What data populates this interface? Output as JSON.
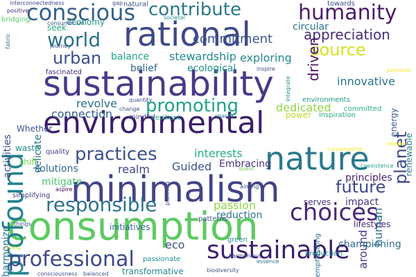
{
  "words": [
    {
      "text": "sustainability",
      "color": "#463b88"
    },
    {
      "text": "consumption",
      "color": "#5ec962"
    },
    {
      "text": "environmental",
      "color": "#3b1e6b"
    },
    {
      "text": "rational",
      "color": "#3f4889"
    },
    {
      "text": "minimalism",
      "color": "#414487"
    },
    {
      "text": "nature",
      "color": "#2a788e"
    },
    {
      "text": "profound",
      "color": "#25838e"
    },
    {
      "text": "sustainable",
      "color": "#3b1f6b"
    },
    {
      "text": "conscious",
      "color": "#35608d"
    },
    {
      "text": "humanity",
      "color": "#4d1b6b"
    },
    {
      "text": "choices",
      "color": "#482677"
    },
    {
      "text": "responsible",
      "color": "#2c728e"
    },
    {
      "text": "professional",
      "color": "#3e4989"
    },
    {
      "text": "promoting",
      "color": "#20a386"
    },
    {
      "text": "contribute",
      "color": "#2a778e"
    },
    {
      "text": "world",
      "color": "#2d708e"
    },
    {
      "text": "source",
      "color": "#d2e21b"
    },
    {
      "text": "planet",
      "color": "#3e4989"
    },
    {
      "text": "practices",
      "color": "#3b528b"
    },
    {
      "text": "future",
      "color": "#404588"
    },
    {
      "text": "appreciation",
      "color": "#472d7b"
    },
    {
      "text": "urban",
      "color": "#3d4e8a"
    },
    {
      "text": "commitment",
      "color": "#3a538b"
    },
    {
      "text": "exploring",
      "color": "#24878e"
    },
    {
      "text": "stewardship",
      "color": "#23888e"
    },
    {
      "text": "balance",
      "color": "#1fa187"
    },
    {
      "text": "innovative",
      "color": "#2c728e"
    },
    {
      "text": "passion",
      "color": "#90d743"
    },
    {
      "text": "dedicated",
      "color": "#8fd744"
    },
    {
      "text": "driven",
      "color": "#471063"
    },
    {
      "text": "revolve",
      "color": "#2f6c8e"
    },
    {
      "text": "connection",
      "color": "#33628d"
    },
    {
      "text": "solutions",
      "color": "#31688e"
    },
    {
      "text": "realm",
      "color": "#3f4788"
    },
    {
      "text": "Guided",
      "color": "#3b528b"
    },
    {
      "text": "interests",
      "color": "#27ad81"
    },
    {
      "text": "around",
      "color": "#443983"
    },
    {
      "text": "human",
      "color": "#2e6d8e"
    },
    {
      "text": "impact",
      "color": "#46337f"
    },
    {
      "text": "mitigate",
      "color": "#4ac16d"
    },
    {
      "text": "Embracing",
      "color": "#463480"
    },
    {
      "text": "principles",
      "color": "#481f70"
    },
    {
      "text": "championing",
      "color": "#2e6e8e"
    },
    {
      "text": "reduction",
      "color": "#2d718e"
    },
    {
      "text": "eco",
      "color": "#3d4e8a"
    },
    {
      "text": "delicate",
      "color": "#2c728e"
    },
    {
      "text": "activities",
      "color": "#3d4e8a"
    },
    {
      "text": "harmonize",
      "color": "#2c728e"
    },
    {
      "text": "belief",
      "color": "#31688e"
    },
    {
      "text": "ecological",
      "color": "#21918c"
    },
    {
      "text": "circular",
      "color": "#2c728e"
    },
    {
      "text": "economy",
      "color": "#1f9a8a"
    },
    {
      "text": "seek",
      "color": "#22a884"
    },
    {
      "text": "energy",
      "color": "#39568c"
    },
    {
      "text": "renewable",
      "color": "#2a768e"
    },
    {
      "text": "lifestyles",
      "color": "#472a7a"
    },
    {
      "text": "initiatives",
      "color": "#31688e"
    },
    {
      "text": "patterns",
      "color": "#3b528b"
    },
    {
      "text": "green",
      "color": "#24868e"
    },
    {
      "text": "emphasizing",
      "color": "#2f6b8e"
    },
    {
      "text": "transformative",
      "color": "#24868e"
    },
    {
      "text": "passionate",
      "color": "#21918c"
    },
    {
      "text": "production",
      "color": "#23888e"
    },
    {
      "text": "serves",
      "color": "#46337f"
    },
    {
      "text": "Whether",
      "color": "#3b528b"
    },
    {
      "text": "waste",
      "color": "#21918c"
    },
    {
      "text": "quality",
      "color": "#443983"
    },
    {
      "text": "shift",
      "color": "#7ad151"
    },
    {
      "text": "simplifying",
      "color": "#443983"
    },
    {
      "text": "mindful",
      "color": "#3f4788"
    },
    {
      "text": "power",
      "color": "#bddf26"
    },
    {
      "text": "committed",
      "color": "#27ad81"
    },
    {
      "text": "inspiration",
      "color": "#22a884"
    },
    {
      "text": "environments",
      "color": "#1f9a8a"
    },
    {
      "text": "resilient",
      "color": "#20a386"
    },
    {
      "text": "spaces",
      "color": "#2a788e"
    },
    {
      "text": "quantity",
      "color": "#3e4989"
    },
    {
      "text": "consumerism",
      "color": "#3b528b"
    },
    {
      "text": "fascinated",
      "color": "#472a7a"
    },
    {
      "text": "towards",
      "color": "#3d4e8a"
    },
    {
      "text": "interconnectedness",
      "color": "#414487"
    },
    {
      "text": "positive",
      "color": "#472878"
    },
    {
      "text": "bridging",
      "color": "#5ec962"
    },
    {
      "text": "gap",
      "color": "#3f4788"
    },
    {
      "text": "natural",
      "color": "#3b528b"
    },
    {
      "text": "journey",
      "color": "#39568c"
    },
    {
      "text": "fabric",
      "color": "#2c728e"
    },
    {
      "text": "societal",
      "color": "#21918c"
    },
    {
      "text": "inspire",
      "color": "#3e4989"
    },
    {
      "text": "personal",
      "color": "#fde725"
    },
    {
      "text": "integrate",
      "color": "#21918c"
    },
    {
      "text": "change",
      "color": "#3b528b"
    },
    {
      "text": "coexistence",
      "color": "#20a386"
    },
    {
      "text": "conservation",
      "color": "#fde725"
    },
    {
      "text": "deeper",
      "color": "#fde725"
    },
    {
      "text": "quest",
      "color": "#6ece58"
    },
    {
      "text": "planning",
      "color": "#3f4788"
    },
    {
      "text": "aiming",
      "color": "#3e4989"
    },
    {
      "text": "aspire",
      "color": "#440154"
    },
    {
      "text": "things",
      "color": "#3b528b"
    },
    {
      "text": "harmonious",
      "color": "#3e4989"
    },
    {
      "text": "essence",
      "color": "#2c728e"
    },
    {
      "text": "biodiversity",
      "color": "#3b528b"
    },
    {
      "text": "living",
      "color": "#bddf26"
    },
    {
      "text": "consciousness",
      "color": "#3e4989"
    },
    {
      "text": "balanced",
      "color": "#3b528b"
    }
  ]
}
